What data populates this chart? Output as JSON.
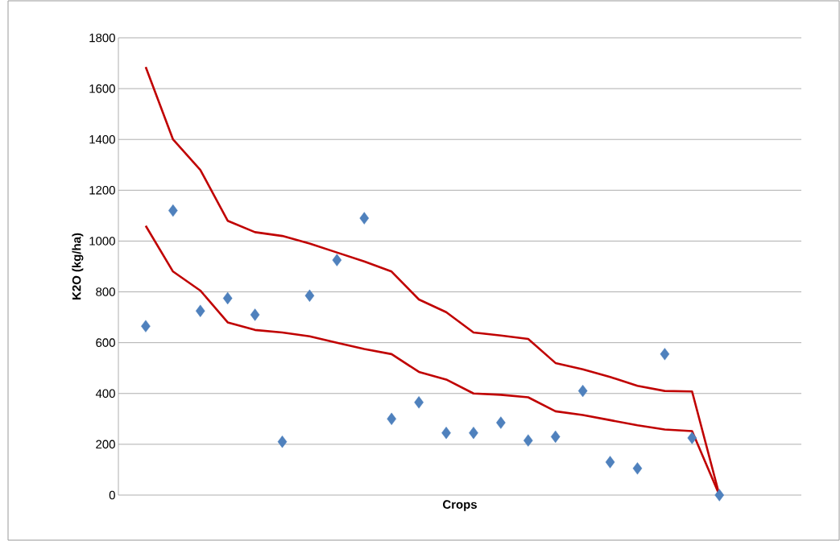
{
  "chart_data": {
    "type": "line",
    "xlabel": "Crops",
    "ylabel": "K2O (kg/ha)",
    "categories": [
      null,
      null,
      null,
      null,
      null,
      null,
      null,
      null,
      null,
      null,
      null,
      null,
      null,
      null,
      null,
      null,
      null,
      null,
      null,
      null,
      null,
      null
    ],
    "ylim": [
      0,
      1800
    ],
    "yticks": [
      0,
      200,
      400,
      600,
      800,
      1000,
      1200,
      1400,
      1600,
      1800
    ],
    "tick_labels": "y",
    "grid": "y",
    "series": [
      {
        "type": "scatter",
        "marker": "diamond",
        "color": "#4f81bd",
        "values": [
          665,
          1120,
          725,
          775,
          710,
          210,
          785,
          925,
          1090,
          300,
          365,
          245,
          245,
          285,
          215,
          230,
          410,
          130,
          105,
          555,
          225,
          0
        ]
      },
      {
        "color": "#c00000",
        "values": [
          1685,
          1400,
          1280,
          1080,
          1035,
          1020,
          990,
          955,
          920,
          880,
          770,
          720,
          640,
          628,
          615,
          520,
          495,
          465,
          430,
          410,
          408,
          0
        ]
      },
      {
        "color": "#c00000",
        "values": [
          1060,
          880,
          805,
          680,
          650,
          640,
          625,
          600,
          575,
          555,
          485,
          455,
          400,
          395,
          385,
          330,
          315,
          295,
          275,
          258,
          252,
          0
        ]
      }
    ]
  }
}
